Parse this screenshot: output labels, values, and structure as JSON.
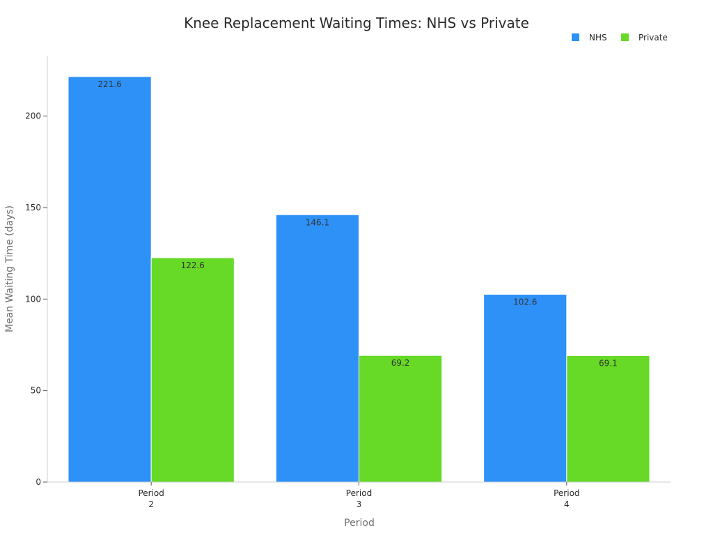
{
  "chart_data": {
    "type": "bar",
    "title": "Knee Replacement Waiting Times: NHS vs Private",
    "xlabel": "Period",
    "ylabel": "Mean Waiting Time (days)",
    "categories": [
      {
        "line1": "Period",
        "line2": "2"
      },
      {
        "line1": "Period",
        "line2": "3"
      },
      {
        "line1": "Period",
        "line2": "4"
      }
    ],
    "series": [
      {
        "name": "NHS",
        "color": "#2e91f8",
        "values": [
          221.6,
          146.1,
          102.6
        ]
      },
      {
        "name": "Private",
        "color": "#66da26",
        "values": [
          122.6,
          69.2,
          69.1
        ]
      }
    ],
    "yticks": [
      0,
      50,
      100,
      150,
      200
    ],
    "ylim": [
      0,
      233
    ],
    "grid": false,
    "legend_position": "top-right",
    "data_labels": true
  }
}
